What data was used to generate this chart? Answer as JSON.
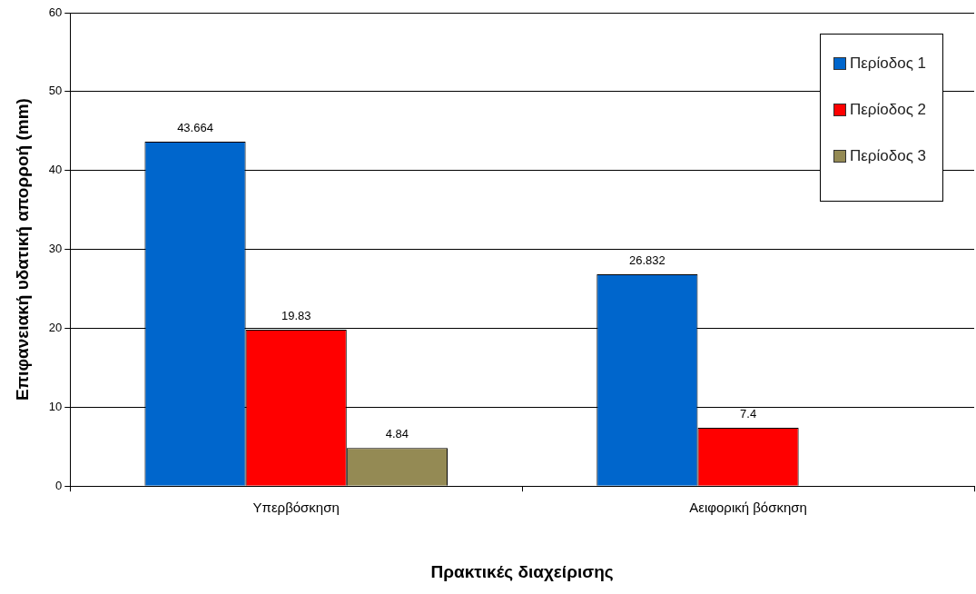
{
  "chart_data": {
    "type": "bar",
    "xlabel": "Πρακτικές διαχείρισης",
    "ylabel": "Επιφανειακή υδατική απορροή (mm)",
    "categories": [
      "Υπερβόσκηση",
      "Αειφορική βόσκηση"
    ],
    "series": [
      {
        "name": "Περίοδος 1",
        "color": "#0066cc",
        "values": [
          43.664,
          26.832
        ]
      },
      {
        "name": "Περίοδος 2",
        "color": "#ff0000",
        "values": [
          19.83,
          7.4
        ]
      },
      {
        "name": "Περίοδος 3",
        "color": "#948a54",
        "values": [
          4.84,
          null
        ]
      }
    ],
    "ylim": [
      0,
      60
    ],
    "yticks": [
      0,
      10,
      20,
      30,
      40,
      50,
      60
    ],
    "grid": "y",
    "legend": "top right",
    "data_labels": true
  }
}
